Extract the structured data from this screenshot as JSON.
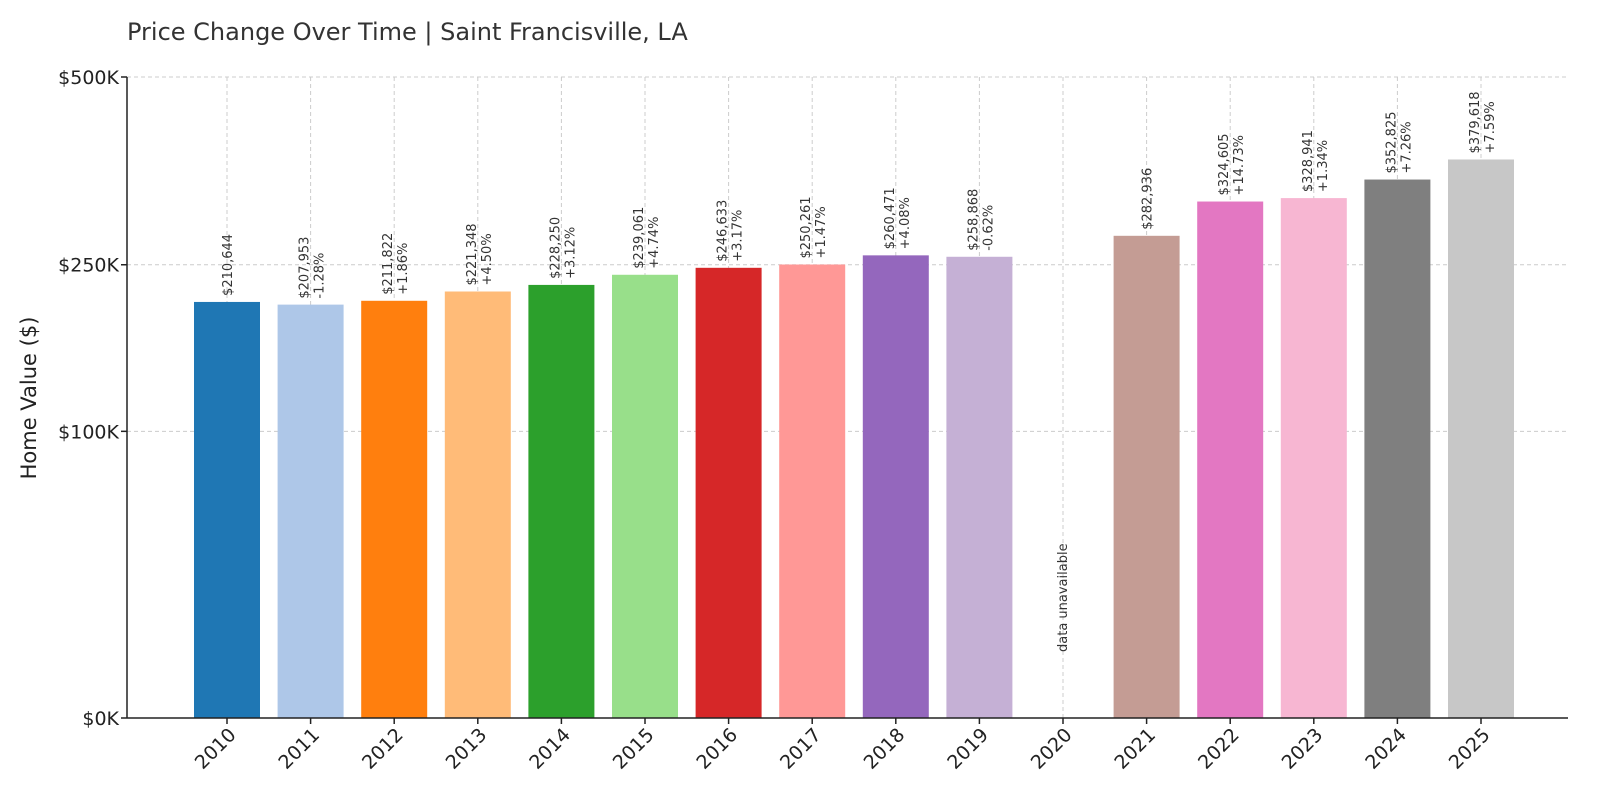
{
  "chart_data": {
    "type": "bar",
    "title": "Price Change Over Time | Saint Francisville, LA",
    "xlabel": "",
    "ylabel": "Home Value ($)",
    "y_scale": "sqrt",
    "ylim": [
      0,
      500000
    ],
    "y_ticks": [
      {
        "value": 0,
        "label": "$0K"
      },
      {
        "value": 100000,
        "label": "$100K"
      },
      {
        "value": 250000,
        "label": "$250K"
      },
      {
        "value": 500000,
        "label": "$500K"
      }
    ],
    "grid": true,
    "categories": [
      "2010",
      "2011",
      "2012",
      "2013",
      "2014",
      "2015",
      "2016",
      "2017",
      "2018",
      "2019",
      "2020",
      "2021",
      "2022",
      "2023",
      "2024",
      "2025"
    ],
    "values": [
      210644,
      207953,
      211822,
      221348,
      228250,
      239061,
      246633,
      250261,
      260471,
      258868,
      null,
      282936,
      324605,
      328941,
      352825,
      379618
    ],
    "value_labels": [
      "$210,644",
      "$207,953",
      "$211,822",
      "$221,348",
      "$228,250",
      "$239,061",
      "$246,633",
      "$250,261",
      "$260,471",
      "$258,868",
      "",
      "$282,936",
      "$324,605",
      "$328,941",
      "$352,825",
      "$379,618"
    ],
    "change_labels": [
      "",
      "-1.28%",
      "+1.86%",
      "+4.50%",
      "+3.12%",
      "+4.74%",
      "+3.17%",
      "+1.47%",
      "+4.08%",
      "-0.62%",
      "",
      "",
      "+14.73%",
      "+1.34%",
      "+7.26%",
      "+7.59%"
    ],
    "missing_label": "data unavailable",
    "colors": [
      "#1f77b4",
      "#aec7e8",
      "#ff7f0e",
      "#ffbb78",
      "#2ca02c",
      "#98df8a",
      "#d62728",
      "#ff9896",
      "#9467bd",
      "#c5b0d5",
      "#8c564b",
      "#c49c94",
      "#e377c2",
      "#f7b6d2",
      "#7f7f7f",
      "#c7c7c7"
    ]
  }
}
